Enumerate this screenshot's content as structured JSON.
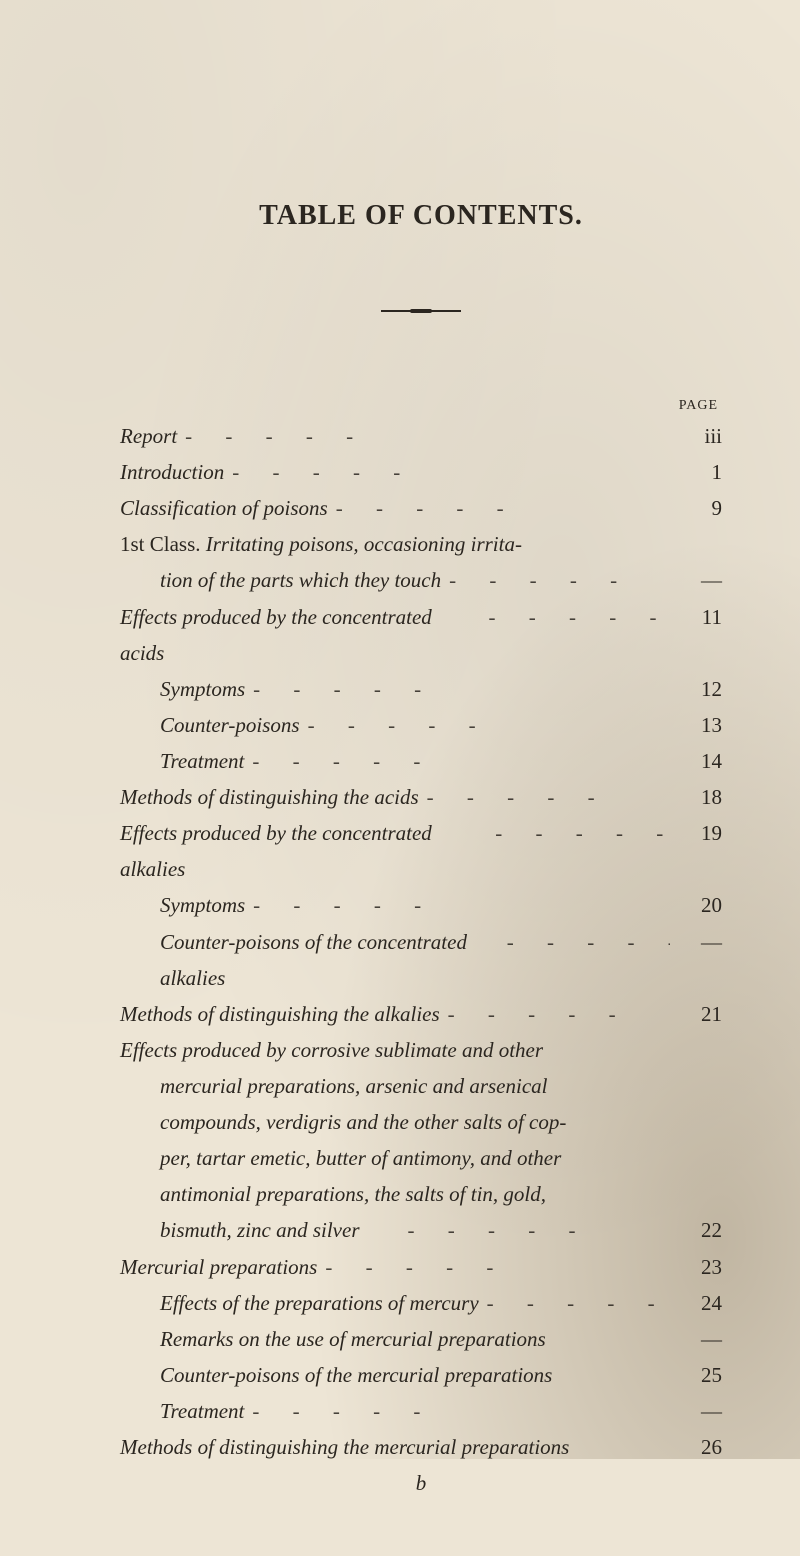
{
  "colors": {
    "paper": "#ede5d5",
    "ink": "#2b2620"
  },
  "typography": {
    "title_fontsize": 28,
    "body_fontsize": 21,
    "line_height": 1.72,
    "font_family": "Times New Roman, Georgia, serif"
  },
  "title": "TABLE OF CONTENTS.",
  "page_label": "PAGE",
  "signature": "b",
  "dash": "-",
  "emdash": "—",
  "dots": "·  ·  ·  ·  ·  ·",
  "entries": [
    {
      "indent": 0,
      "text": "Report",
      "leaders": true,
      "page": "iii"
    },
    {
      "indent": 0,
      "text": "Introduction",
      "leaders": true,
      "page": "1"
    },
    {
      "indent": 0,
      "text": "Classification of poisons",
      "leaders": true,
      "page": "9"
    },
    {
      "indent": 0,
      "text_pre": "1st Class.  ",
      "text": "Irritating poisons, occasioning irrita-",
      "leaders": false,
      "page": ""
    },
    {
      "indent": 1,
      "text": "tion of the parts which they touch",
      "leaders": true,
      "page": "—"
    },
    {
      "indent": 0,
      "text": "Effects produced by the concentrated acids",
      "leaders": true,
      "page": "11"
    },
    {
      "indent": 1,
      "text": "Symptoms",
      "leaders": true,
      "page": "12"
    },
    {
      "indent": 1,
      "text": "Counter-poisons",
      "leaders": true,
      "page": "13"
    },
    {
      "indent": 1,
      "text": "Treatment",
      "leaders": true,
      "page": "14"
    },
    {
      "indent": 0,
      "text": "Methods of distinguishing the acids",
      "leaders": true,
      "page": "18"
    },
    {
      "indent": 0,
      "text": "Effects produced by the concentrated alkalies",
      "leaders": true,
      "page": "19"
    },
    {
      "indent": 1,
      "text": "Symptoms",
      "leaders": true,
      "page": "20"
    },
    {
      "indent": 1,
      "text": "Counter-poisons of the concentrated alkalies",
      "leaders": true,
      "page": "—"
    },
    {
      "indent": 0,
      "text": "Methods of distinguishing the alkalies",
      "leaders": true,
      "page": "21"
    },
    {
      "indent": 0,
      "text": "Effects produced by corrosive sublimate and other",
      "leaders": false,
      "page": ""
    },
    {
      "indent": 0,
      "para": true,
      "text": "mercurial preparations, arsenic and arsenical",
      "leaders": false,
      "page": ""
    },
    {
      "indent": 0,
      "para": true,
      "text": "compounds, verdigris and the other salts of cop-",
      "leaders": false,
      "page": ""
    },
    {
      "indent": 0,
      "para": true,
      "text": "per, tartar emetic, butter of antimony, and other",
      "leaders": false,
      "page": ""
    },
    {
      "indent": 0,
      "para": true,
      "text": "antimonial preparations, the salts of tin, gold,",
      "leaders": false,
      "page": ""
    },
    {
      "indent": 0,
      "para": true,
      "text": "bismuth, zinc and silver",
      "leaders": true,
      "page": "22"
    },
    {
      "indent": 0,
      "text": "Mercurial preparations",
      "leaders": true,
      "page": "23"
    },
    {
      "indent": 1,
      "text": "Effects of the preparations of mercury",
      "leaders": true,
      "page": "24"
    },
    {
      "indent": 1,
      "text": "Remarks on the use of mercurial preparations",
      "leaders": false,
      "page": "—"
    },
    {
      "indent": 1,
      "text": "Counter-poisons of the mercurial preparations",
      "leaders": false,
      "page": "25"
    },
    {
      "indent": 1,
      "text": "Treatment",
      "leaders": true,
      "page": "—"
    },
    {
      "indent": 0,
      "text": "Methods of distinguishing the mercurial preparations",
      "leaders": false,
      "page": "26"
    }
  ]
}
